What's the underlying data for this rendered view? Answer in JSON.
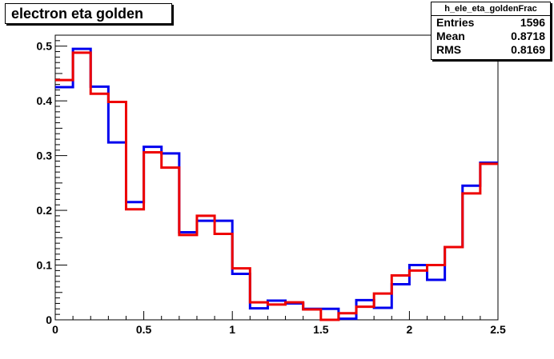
{
  "title": "electron eta golden",
  "stats": {
    "name": "h_ele_eta_goldenFrac",
    "rows": [
      {
        "label": "Entries",
        "value": "1596"
      },
      {
        "label": "Mean",
        "value": "0.8718"
      },
      {
        "label": "RMS",
        "value": "0.8169"
      }
    ]
  },
  "chart_data": {
    "type": "line",
    "title": "electron eta golden",
    "xlabel": "",
    "ylabel": "",
    "xlim": [
      0,
      2.5
    ],
    "ylim": [
      0,
      0.52
    ],
    "bin_edges": [
      0,
      0.1,
      0.2,
      0.3,
      0.4,
      0.5,
      0.6,
      0.7,
      0.8,
      0.9,
      1.0,
      1.1,
      1.2,
      1.3,
      1.4,
      1.5,
      1.6,
      1.7,
      1.8,
      1.9,
      2.0,
      2.1,
      2.2,
      2.3,
      2.4,
      2.5
    ],
    "series": [
      {
        "color": "#0000ee",
        "values": [
          0.425,
          0.495,
          0.426,
          0.324,
          0.215,
          0.316,
          0.304,
          0.16,
          0.181,
          0.181,
          0.084,
          0.021,
          0.035,
          0.03,
          0.02,
          0.02,
          0.002,
          0.036,
          0.022,
          0.065,
          0.1,
          0.073,
          0.133,
          0.245,
          0.287
        ]
      },
      {
        "color": "#ee0000",
        "values": [
          0.438,
          0.488,
          0.413,
          0.398,
          0.202,
          0.306,
          0.278,
          0.155,
          0.19,
          0.157,
          0.094,
          0.032,
          0.028,
          0.032,
          0.019,
          0.0,
          0.012,
          0.024,
          0.048,
          0.081,
          0.09,
          0.1,
          0.133,
          0.231,
          0.285
        ]
      }
    ],
    "xticks": [
      {
        "v": 0,
        "label": "0"
      },
      {
        "v": 0.5,
        "label": "0.5"
      },
      {
        "v": 1,
        "label": "1"
      },
      {
        "v": 1.5,
        "label": "1.5"
      },
      {
        "v": 2,
        "label": "2"
      },
      {
        "v": 2.5,
        "label": "2.5"
      }
    ],
    "yticks": [
      {
        "v": 0,
        "label": "0"
      },
      {
        "v": 0.1,
        "label": "0.1"
      },
      {
        "v": 0.2,
        "label": "0.2"
      },
      {
        "v": 0.3,
        "label": "0.3"
      },
      {
        "v": 0.4,
        "label": "0.4"
      },
      {
        "v": 0.5,
        "label": "0.5"
      }
    ],
    "grid": false,
    "legend": "none"
  }
}
